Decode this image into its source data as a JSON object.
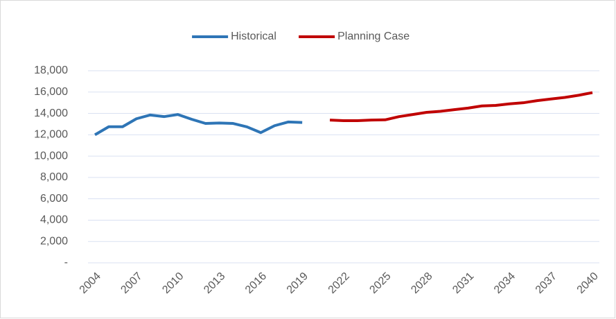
{
  "chart_data": {
    "type": "line",
    "x": [
      2004,
      2005,
      2006,
      2007,
      2008,
      2009,
      2010,
      2011,
      2012,
      2013,
      2014,
      2015,
      2016,
      2017,
      2018,
      2019,
      2020,
      2021,
      2022,
      2023,
      2024,
      2025,
      2026,
      2027,
      2028,
      2029,
      2030,
      2031,
      2032,
      2033,
      2034,
      2035,
      2036,
      2037,
      2038,
      2039,
      2040
    ],
    "series": [
      {
        "name": "Historical",
        "color": "#2e75b6",
        "values": [
          12000,
          12750,
          12750,
          13500,
          13850,
          13700,
          13900,
          13450,
          13060,
          13100,
          13060,
          12740,
          12200,
          12850,
          13200,
          13150,
          null,
          null,
          null,
          null,
          null,
          null,
          null,
          null,
          null,
          null,
          null,
          null,
          null,
          null,
          null,
          null,
          null,
          null,
          null,
          null,
          null
        ]
      },
      {
        "name": "Planning Case",
        "color": "#c00000",
        "values": [
          null,
          null,
          null,
          null,
          null,
          null,
          null,
          null,
          null,
          null,
          null,
          null,
          null,
          null,
          null,
          null,
          null,
          13380,
          13320,
          13320,
          13380,
          13400,
          13700,
          13900,
          14100,
          14200,
          14350,
          14500,
          14700,
          14750,
          14900,
          15000,
          15200,
          15350,
          15500,
          15700,
          15950
        ]
      }
    ],
    "xlim": [
      2004,
      2040
    ],
    "xticks": [
      2004,
      2007,
      2010,
      2013,
      2016,
      2019,
      2022,
      2025,
      2028,
      2031,
      2034,
      2037,
      2040
    ],
    "ylim": [
      0,
      18000
    ],
    "yticks": [
      {
        "value": 0,
        "label": "-"
      },
      {
        "value": 2000,
        "label": "2,000"
      },
      {
        "value": 4000,
        "label": "4,000"
      },
      {
        "value": 6000,
        "label": "6,000"
      },
      {
        "value": 8000,
        "label": "8,000"
      },
      {
        "value": 10000,
        "label": "10,000"
      },
      {
        "value": 12000,
        "label": "12,000"
      },
      {
        "value": 14000,
        "label": "14,000"
      },
      {
        "value": 16000,
        "label": "16,000"
      },
      {
        "value": 18000,
        "label": "18,000"
      }
    ],
    "grid": true,
    "legend": "top"
  }
}
